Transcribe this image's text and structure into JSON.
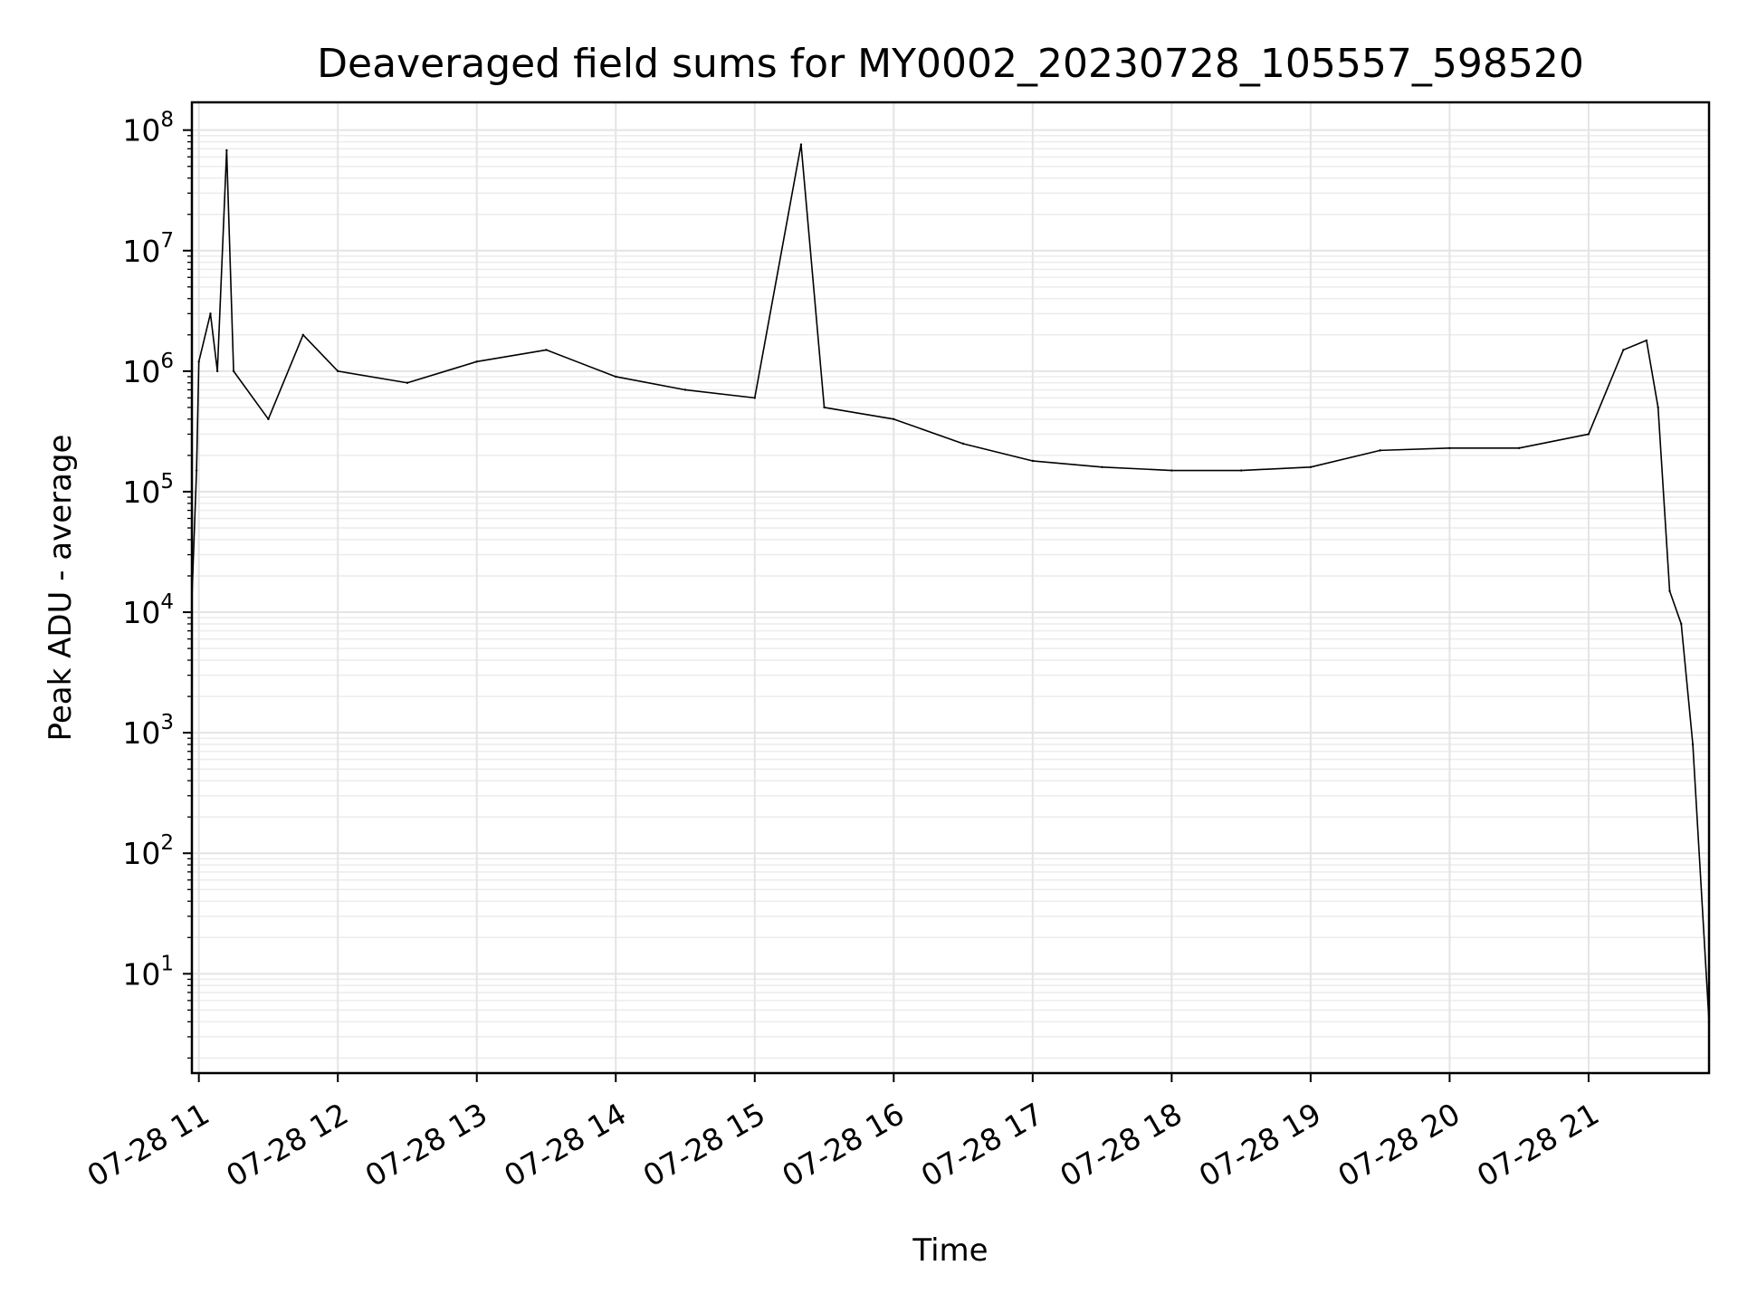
{
  "chart_data": {
    "type": "line",
    "title": "Deaveraged field sums for MY0002_20230728_105557_598520",
    "xlabel": "Time",
    "ylabel": "Peak ADU - average",
    "x_scale": "time",
    "y_scale": "log",
    "xlim": [
      "2023-07-28 10:57",
      "2023-07-28 21:52"
    ],
    "ylim": [
      1.5,
      170000000
    ],
    "grid": true,
    "x_ticks": [
      "07-28 11",
      "07-28 12",
      "07-28 13",
      "07-28 14",
      "07-28 15",
      "07-28 16",
      "07-28 17",
      "07-28 18",
      "07-28 19",
      "07-28 20",
      "07-28 21"
    ],
    "y_ticks": [
      {
        "base": "10",
        "exp": "1"
      },
      {
        "base": "10",
        "exp": "2"
      },
      {
        "base": "10",
        "exp": "3"
      },
      {
        "base": "10",
        "exp": "4"
      },
      {
        "base": "10",
        "exp": "5"
      },
      {
        "base": "10",
        "exp": "6"
      },
      {
        "base": "10",
        "exp": "7"
      },
      {
        "base": "10",
        "exp": "8"
      }
    ],
    "series": [
      {
        "color": "#000000",
        "points": [
          [
            "2023-07-28 10:57",
            13000
          ],
          [
            "2023-07-28 10:59",
            150000
          ],
          [
            "2023-07-28 11:00",
            1200000
          ],
          [
            "2023-07-28 11:05",
            3000000
          ],
          [
            "2023-07-28 11:08",
            1000000
          ],
          [
            "2023-07-28 11:12",
            68000000
          ],
          [
            "2023-07-28 11:15",
            1000000
          ],
          [
            "2023-07-28 11:30",
            400000
          ],
          [
            "2023-07-28 11:45",
            2000000
          ],
          [
            "2023-07-28 12:00",
            1000000
          ],
          [
            "2023-07-28 12:30",
            800000
          ],
          [
            "2023-07-28 13:00",
            1200000
          ],
          [
            "2023-07-28 13:30",
            1500000
          ],
          [
            "2023-07-28 14:00",
            900000
          ],
          [
            "2023-07-28 14:30",
            700000
          ],
          [
            "2023-07-28 15:00",
            600000
          ],
          [
            "2023-07-28 15:20",
            76000000
          ],
          [
            "2023-07-28 15:30",
            500000
          ],
          [
            "2023-07-28 16:00",
            400000
          ],
          [
            "2023-07-28 16:30",
            250000
          ],
          [
            "2023-07-28 17:00",
            180000
          ],
          [
            "2023-07-28 17:30",
            160000
          ],
          [
            "2023-07-28 18:00",
            150000
          ],
          [
            "2023-07-28 18:30",
            150000
          ],
          [
            "2023-07-28 19:00",
            160000
          ],
          [
            "2023-07-28 19:30",
            220000
          ],
          [
            "2023-07-28 20:00",
            230000
          ],
          [
            "2023-07-28 20:30",
            230000
          ],
          [
            "2023-07-28 21:00",
            300000
          ],
          [
            "2023-07-28 21:15",
            1500000
          ],
          [
            "2023-07-28 21:25",
            1800000
          ],
          [
            "2023-07-28 21:30",
            500000
          ],
          [
            "2023-07-28 21:35",
            15000
          ],
          [
            "2023-07-28 21:40",
            8000
          ],
          [
            "2023-07-28 21:45",
            800
          ],
          [
            "2023-07-28 21:52",
            4
          ]
        ]
      }
    ]
  }
}
